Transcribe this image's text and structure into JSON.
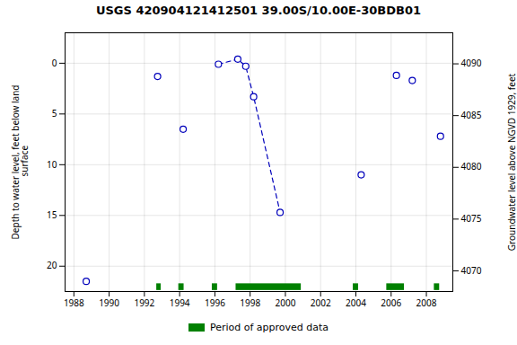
{
  "chart_data": {
    "type": "scatter",
    "title": "USGS 420904121412501 39.00S/10.00E-30BDB01",
    "ylabel": "Depth to water level, feet below land\n surface",
    "y2label": "Groundwater level above NGVD 1929, feet",
    "xlim": [
      1987.5,
      2009.5
    ],
    "xticks": [
      1988,
      1990,
      1992,
      1994,
      1996,
      1998,
      2000,
      2002,
      2004,
      2006,
      2008
    ],
    "ylim": [
      22.5,
      -3.0
    ],
    "yticks": [
      0,
      5,
      10,
      15,
      20
    ],
    "y2lim": [
      4068.0,
      4093.0
    ],
    "y2ticks": [
      4070,
      4075,
      4080,
      4085,
      4090
    ],
    "grid": true,
    "legend": "bottom",
    "series": [
      {
        "type": "line",
        "line_style": "dashed",
        "color": "#0000bb",
        "x": [
          1996.2,
          1997.3,
          1997.75,
          1998.2,
          1999.7
        ],
        "values": [
          0.1,
          -0.4,
          0.3,
          3.3,
          14.7
        ]
      },
      {
        "type": "scatter",
        "marker": "open_circle",
        "color": "#0000bb",
        "x": [
          1988.7,
          1992.75,
          1994.2,
          1996.2,
          1997.3,
          1997.75,
          1998.2,
          1999.7,
          2004.3,
          2006.3,
          2007.2,
          2008.8
        ],
        "values": [
          21.5,
          1.3,
          6.5,
          0.1,
          -0.4,
          0.3,
          3.3,
          14.7,
          11.0,
          1.2,
          1.7,
          7.2
        ]
      },
      {
        "type": "bar",
        "orientation": "horizontal",
        "name": "Period of approved data",
        "color": "#008000",
        "starts": [
          1992.7,
          1993.95,
          1995.85,
          1997.2,
          2003.85,
          2005.75,
          2008.45
        ],
        "ends": [
          1992.95,
          1994.25,
          1996.15,
          2000.9,
          2004.15,
          2006.75,
          2008.75
        ]
      }
    ]
  }
}
